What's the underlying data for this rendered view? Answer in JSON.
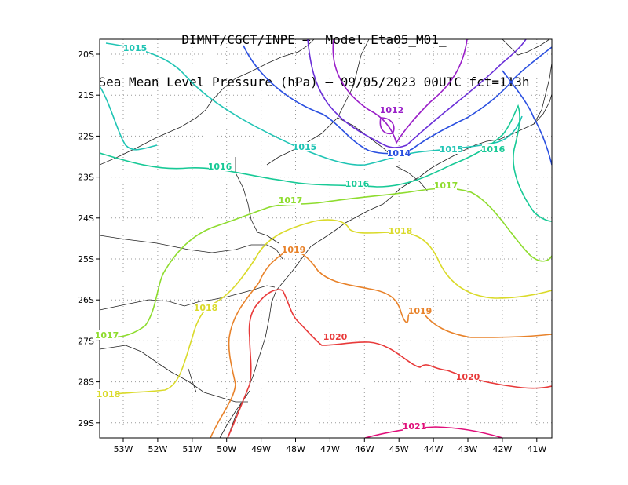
{
  "title": {
    "line1": "DIMNT/CGCT/INPE —  Model Eta05_M01_",
    "line2": "Sea Mean Level Pressure (hPa) — 09/05/2023 00UTC fct=113h"
  },
  "axes": {
    "lat_labels": [
      "20S",
      "21S",
      "22S",
      "23S",
      "24S",
      "25S",
      "26S",
      "27S",
      "28S",
      "29S"
    ],
    "lon_labels": [
      "53W",
      "52W",
      "51W",
      "50W",
      "49W",
      "48W",
      "47W",
      "46W",
      "45W",
      "44W",
      "43W",
      "42W",
      "41W"
    ]
  },
  "contour_labels": [
    {
      "text": "1015",
      "color": "#1fc4b4"
    },
    {
      "text": "1012",
      "color": "#9a1fc8"
    },
    {
      "text": "1015",
      "color": "#1fc4b4"
    },
    {
      "text": "1014",
      "color": "#2a4fe0"
    },
    {
      "text": "1015",
      "color": "#1fc4b4"
    },
    {
      "text": "1016",
      "color": "#17c996"
    },
    {
      "text": "1016",
      "color": "#17c996"
    },
    {
      "text": "1016",
      "color": "#17c996"
    },
    {
      "text": "1017",
      "color": "#8edc2e"
    },
    {
      "text": "1017",
      "color": "#8edc2e"
    },
    {
      "text": "1017",
      "color": "#8edc2e"
    },
    {
      "text": "1018",
      "color": "#dada2a"
    },
    {
      "text": "1018",
      "color": "#dada2a"
    },
    {
      "text": "1018",
      "color": "#dada2a"
    },
    {
      "text": "1019",
      "color": "#e8822a"
    },
    {
      "text": "1019",
      "color": "#e8822a"
    },
    {
      "text": "1020",
      "color": "#e83a3a"
    },
    {
      "text": "1020",
      "color": "#e83a3a"
    },
    {
      "text": "1021",
      "color": "#e0107a"
    }
  ],
  "colors": {
    "c1012": "#9a1fc8",
    "c1013": "#6a2fd8",
    "c1014": "#2a4fe0",
    "c1015": "#1fc4b4",
    "c1016": "#17c996",
    "c1017": "#8edc2e",
    "c1018": "#dada2a",
    "c1019": "#e8822a",
    "c1020": "#e83a3a",
    "c1021": "#e0107a"
  }
}
